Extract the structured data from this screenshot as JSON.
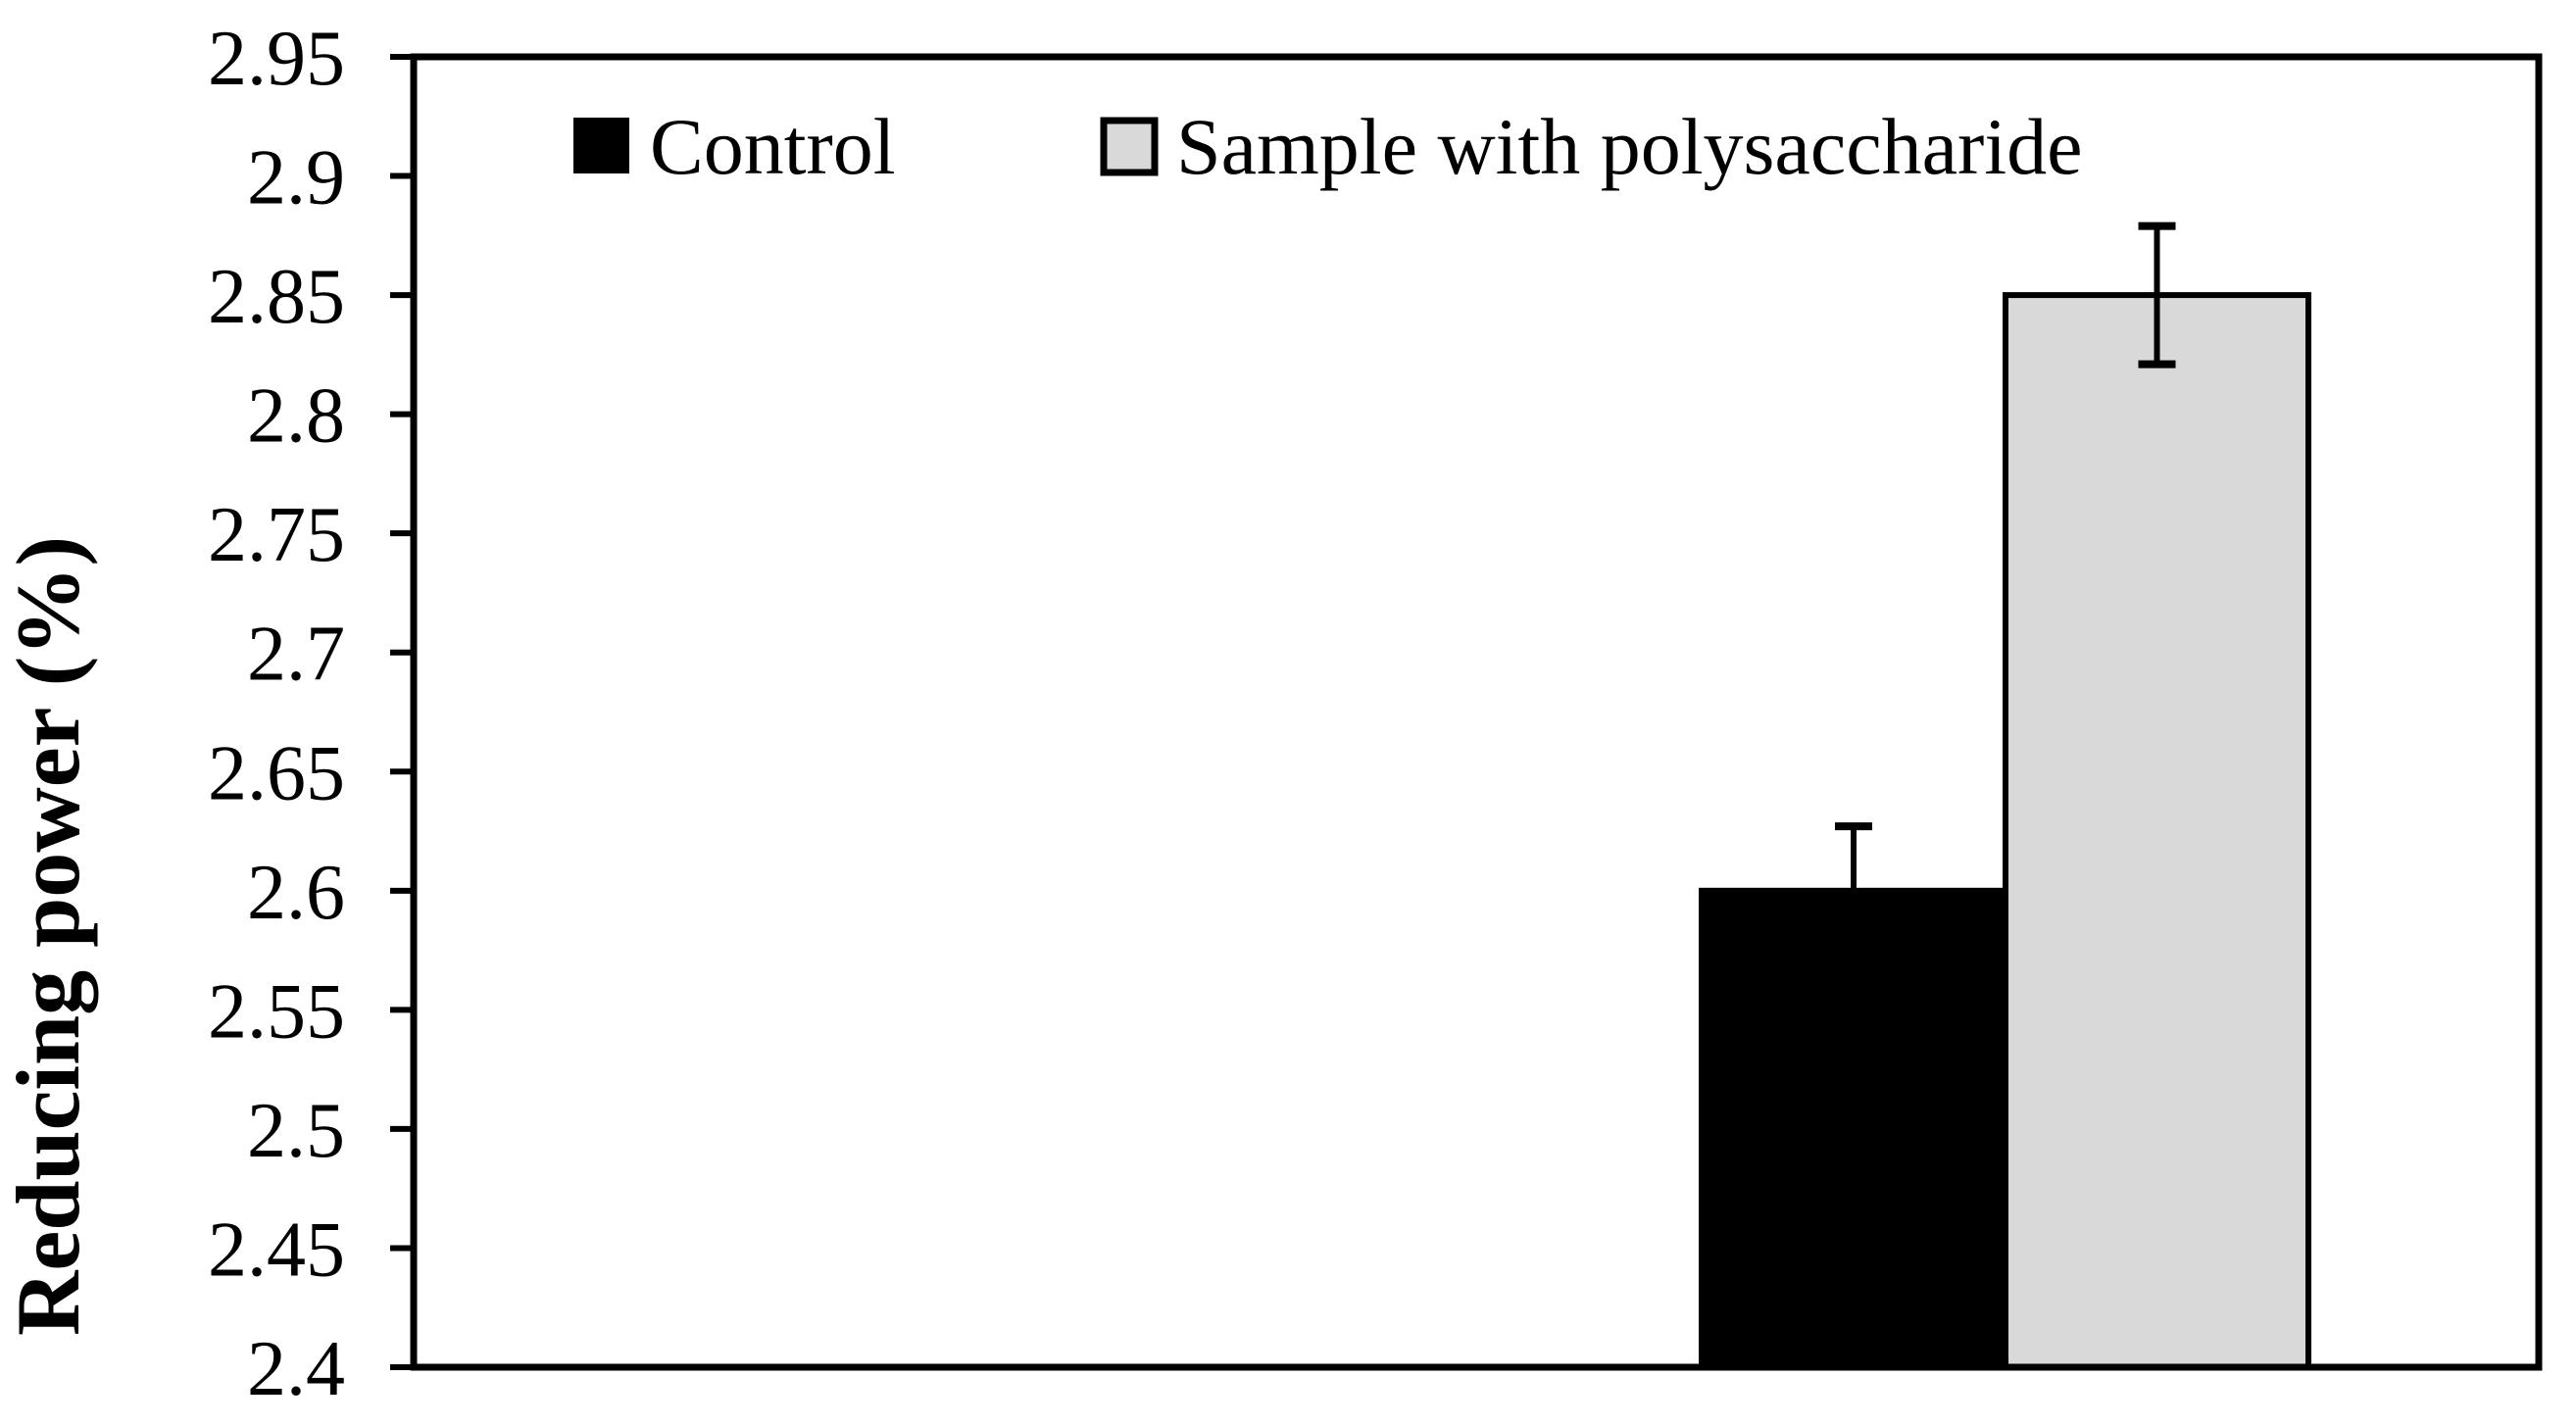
{
  "colors": {
    "background": "#ffffff",
    "axis": "#000000",
    "control_fill": "#000000",
    "sample_fill": "#d9d9d9",
    "bar_outline": "#000000"
  },
  "chart_data": {
    "type": "bar",
    "title": "",
    "xlabel": "",
    "ylabel": "Reducing power (%)",
    "ylim": [
      2.4,
      2.95
    ],
    "ytick_step": 0.05,
    "ytick_labels": [
      "2.95",
      "2.9",
      "2.85",
      "2.8",
      "2.75",
      "2.7",
      "2.65",
      "2.6",
      "2.55",
      "2.5",
      "2.45",
      "2.4"
    ],
    "grid": false,
    "legend_position": "top-inside",
    "categories": [
      ""
    ],
    "series": [
      {
        "name": "Control",
        "color": "#000000",
        "values": [
          2.6
        ],
        "error_up": [
          0.027
        ],
        "error_down": [
          0
        ]
      },
      {
        "name": "Sample with polysaccharide",
        "color": "#d9d9d9",
        "values": [
          2.85
        ],
        "error_up": [
          0.029
        ],
        "error_down": [
          0.029
        ]
      }
    ]
  }
}
